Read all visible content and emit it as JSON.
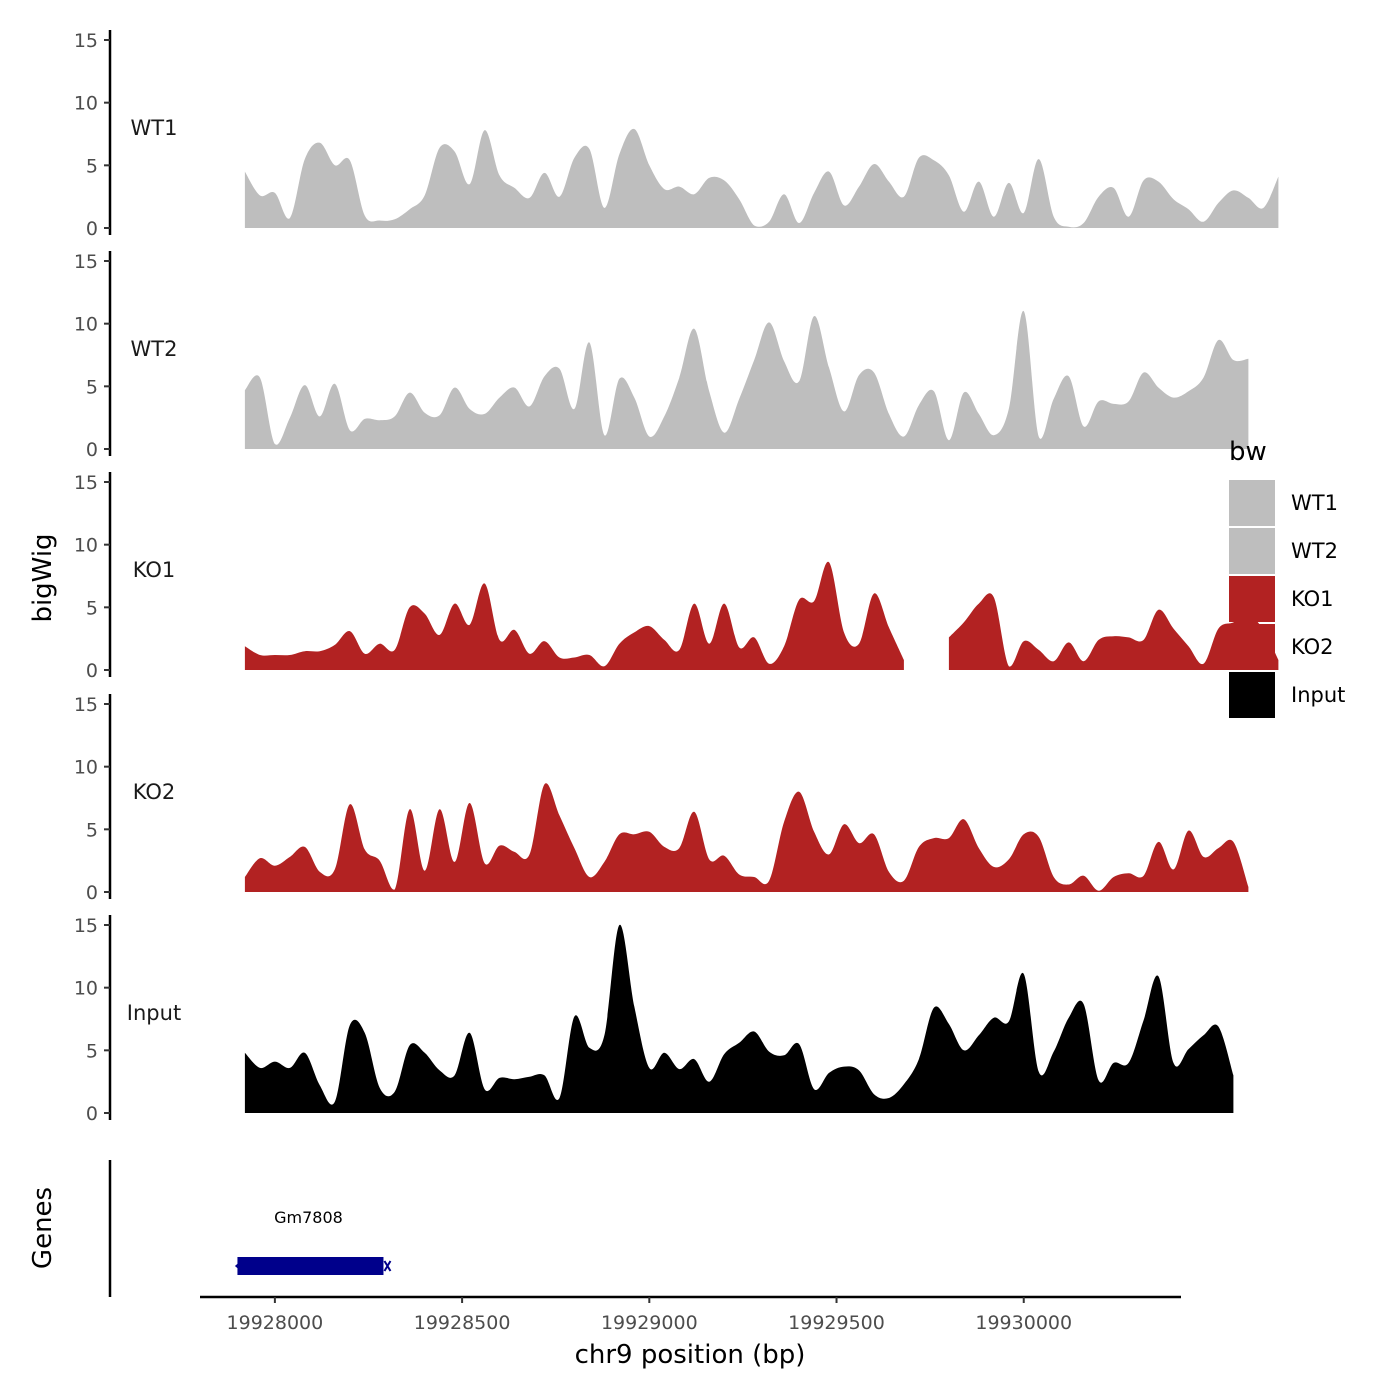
{
  "chart_data": {
    "type": "area",
    "title": "",
    "xlabel": "chr9 position (bp)",
    "ylabel": "bigWig",
    "genes_label": "Genes",
    "xlim": [
      19927800,
      19930420
    ],
    "x_ticks": [
      19928000,
      19928500,
      19929000,
      19929500,
      19930000
    ],
    "x_tick_labels": [
      "19928000",
      "19928500",
      "19929000",
      "19929500",
      "19930000"
    ],
    "ylim": [
      0,
      15
    ],
    "y_ticks": [
      0,
      5,
      10,
      15
    ],
    "y_tick_labels": [
      "0",
      "5",
      "10",
      "15"
    ],
    "grid": false,
    "legend": {
      "title": "bw",
      "position": "right",
      "entries": [
        {
          "label": "WT1",
          "color": "#bebebe"
        },
        {
          "label": "WT2",
          "color": "#bebebe"
        },
        {
          "label": "KO1",
          "color": "#b22222"
        },
        {
          "label": "KO2",
          "color": "#b22222"
        },
        {
          "label": "Input",
          "color": "#000000"
        }
      ]
    },
    "x_start": 19927920,
    "x_step": 40,
    "series": [
      {
        "name": "WT1",
        "color": "#bebebe",
        "values": [
          4.5,
          2.6,
          2.8,
          0.8,
          5.5,
          6.8,
          5.0,
          5.4,
          1.0,
          0.6,
          0.7,
          1.5,
          2.6,
          6.4,
          6.1,
          3.5,
          7.8,
          4.2,
          3.2,
          2.4,
          4.4,
          2.5,
          5.6,
          6.3,
          1.6,
          5.9,
          7.9,
          5.0,
          3.1,
          3.3,
          2.7,
          4.0,
          3.8,
          2.3,
          0.2,
          0.5,
          2.7,
          0.4,
          2.8,
          4.5,
          1.8,
          3.3,
          5.1,
          3.7,
          2.5,
          5.6,
          5.4,
          4.2,
          1.3,
          3.7,
          0.9,
          3.6,
          1.2,
          5.5,
          0.9,
          0.1,
          0.4,
          2.5,
          3.2,
          0.9,
          3.8,
          3.7,
          2.3,
          1.5,
          0.5,
          2.0,
          3.0,
          2.4,
          1.6,
          4.1
        ]
      },
      {
        "name": "WT2",
        "color": "#bebebe",
        "values": [
          4.7,
          5.7,
          0.4,
          2.5,
          5.1,
          2.6,
          5.2,
          1.5,
          2.4,
          2.3,
          2.6,
          4.5,
          2.9,
          2.7,
          4.9,
          3.2,
          2.8,
          4.1,
          4.9,
          3.4,
          5.8,
          6.4,
          3.2,
          8.5,
          1.1,
          5.6,
          4.1,
          1.0,
          2.6,
          5.7,
          9.6,
          4.6,
          1.3,
          4.0,
          7.1,
          10.1,
          7.0,
          5.4,
          10.6,
          6.5,
          3.0,
          5.9,
          6.1,
          2.8,
          1.0,
          3.5,
          4.6,
          0.7,
          4.5,
          2.8,
          1.1,
          3.2,
          11.0,
          1.0,
          4.0,
          5.8,
          1.8,
          3.8,
          3.6,
          3.8,
          6.1,
          4.9,
          4.1,
          4.6,
          5.7,
          8.7,
          7.1,
          7.2
        ]
      },
      {
        "name": "KO1",
        "color": "#b22222",
        "values": [
          1.9,
          1.2,
          1.2,
          1.2,
          1.5,
          1.5,
          2.0,
          3.1,
          1.3,
          2.1,
          1.6,
          5.0,
          4.5,
          2.8,
          5.3,
          3.6,
          6.9,
          2.4,
          3.2,
          1.3,
          2.3,
          1.0,
          1.0,
          1.2,
          0.3,
          2.1,
          3.0,
          3.5,
          2.4,
          1.6,
          5.3,
          2.1,
          5.3,
          1.8,
          2.6,
          0.5,
          1.9,
          5.6,
          5.5,
          8.6,
          3.0,
          2.1,
          6.1,
          3.4,
          0.8,
          null,
          null,
          2.6,
          3.8,
          5.3,
          5.8,
          0.3,
          2.3,
          1.6,
          0.7,
          2.2,
          0.7,
          2.4,
          2.7,
          2.6,
          2.4,
          4.8,
          3.3,
          1.9,
          0.5,
          3.3,
          3.8,
          4.4,
          3.2,
          0.8
        ]
      },
      {
        "name": "KO2",
        "color": "#b22222",
        "values": [
          1.2,
          2.7,
          2.1,
          2.8,
          3.6,
          1.6,
          1.8,
          7.0,
          3.4,
          2.5,
          0.2,
          6.6,
          1.7,
          6.6,
          2.4,
          7.1,
          2.3,
          3.7,
          3.2,
          3.0,
          8.6,
          6.1,
          3.5,
          1.2,
          2.4,
          4.6,
          4.6,
          4.8,
          3.6,
          3.5,
          6.4,
          2.6,
          2.9,
          1.4,
          1.2,
          0.9,
          5.6,
          8.0,
          4.8,
          3.0,
          5.4,
          3.9,
          4.6,
          1.6,
          0.9,
          3.6,
          4.3,
          4.3,
          5.8,
          3.5,
          2.0,
          2.6,
          4.6,
          4.4,
          1.2,
          0.6,
          1.3,
          0.1,
          1.2,
          1.5,
          1.3,
          4.0,
          1.8,
          4.9,
          2.8,
          3.5,
          4.0,
          0.4
        ]
      },
      {
        "name": "Input",
        "color": "#000000",
        "values": [
          4.8,
          3.6,
          4.1,
          3.6,
          4.8,
          2.2,
          0.9,
          7.0,
          6.4,
          2.0,
          1.7,
          5.4,
          4.8,
          3.4,
          3.0,
          6.4,
          1.9,
          2.8,
          2.7,
          2.9,
          3.0,
          1.2,
          7.7,
          5.2,
          6.2,
          15.0,
          8.5,
          3.6,
          4.8,
          3.5,
          4.3,
          2.5,
          4.7,
          5.6,
          6.5,
          4.9,
          4.6,
          5.5,
          1.9,
          3.2,
          3.7,
          3.4,
          1.5,
          1.2,
          2.3,
          4.3,
          8.4,
          7.1,
          5.0,
          6.2,
          7.6,
          7.3,
          11.1,
          3.3,
          4.9,
          7.6,
          8.7,
          2.6,
          4.0,
          4.0,
          7.4,
          10.9,
          4.0,
          5.1,
          6.2,
          6.9,
          3.0
        ]
      }
    ],
    "genes": [
      {
        "name": "Gm7808",
        "start": 19927900,
        "end": 19928290,
        "strand": "-",
        "color": "#00008b"
      }
    ]
  }
}
